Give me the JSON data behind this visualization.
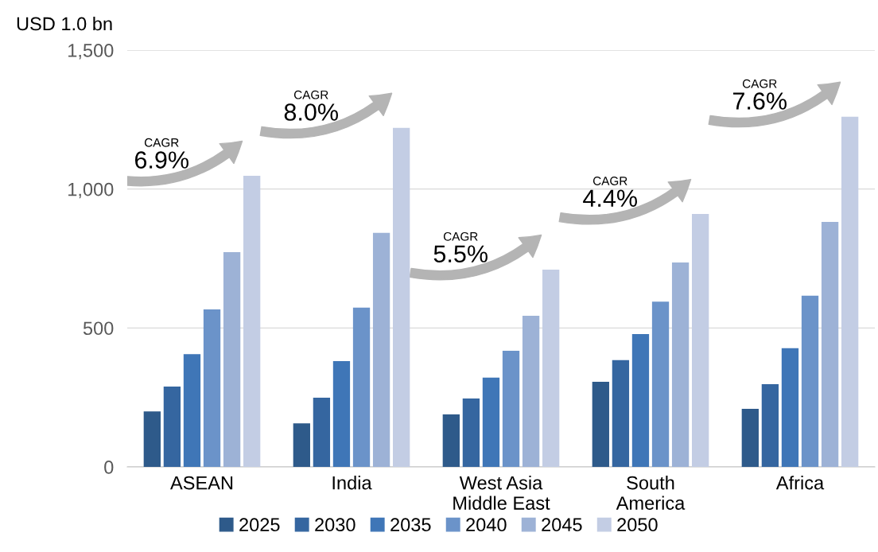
{
  "chart_data": {
    "type": "bar",
    "ylabel": "USD 1.0 bn",
    "categories": [
      "ASEAN",
      "India",
      "West Asia\nMiddle East",
      "South\nAmerica",
      "Africa"
    ],
    "series": [
      {
        "name": "2025",
        "color": "#2e5a8a",
        "values": [
          200,
          157,
          189,
          306,
          209
        ]
      },
      {
        "name": "2030",
        "color": "#3566a0",
        "values": [
          289,
          249,
          246,
          384,
          298
        ]
      },
      {
        "name": "2035",
        "color": "#3f76b7",
        "values": [
          406,
          381,
          321,
          478,
          427
        ]
      },
      {
        "name": "2040",
        "color": "#6b93c9",
        "values": [
          567,
          573,
          418,
          595,
          616
        ]
      },
      {
        "name": "2045",
        "color": "#9db2d6",
        "values": [
          773,
          842,
          544,
          736,
          882
        ]
      },
      {
        "name": "2050",
        "color": "#c3cde4",
        "values": [
          1048,
          1220,
          710,
          910,
          1260
        ]
      }
    ],
    "ylim": [
      0,
      1500
    ],
    "yticks": [
      0,
      {
        "value": 500,
        "label": "500"
      },
      {
        "value": 1000,
        "label": "1,000"
      },
      {
        "value": 1500,
        "label": "1,500"
      }
    ],
    "grid": "y",
    "legend": "bottom",
    "annotations": [
      "CAGR\n6.9%",
      "CAGR\n8.0%",
      "CAGR\n5.5%",
      "CAGR\n4.4%",
      "CAGR\n7.6%"
    ]
  }
}
